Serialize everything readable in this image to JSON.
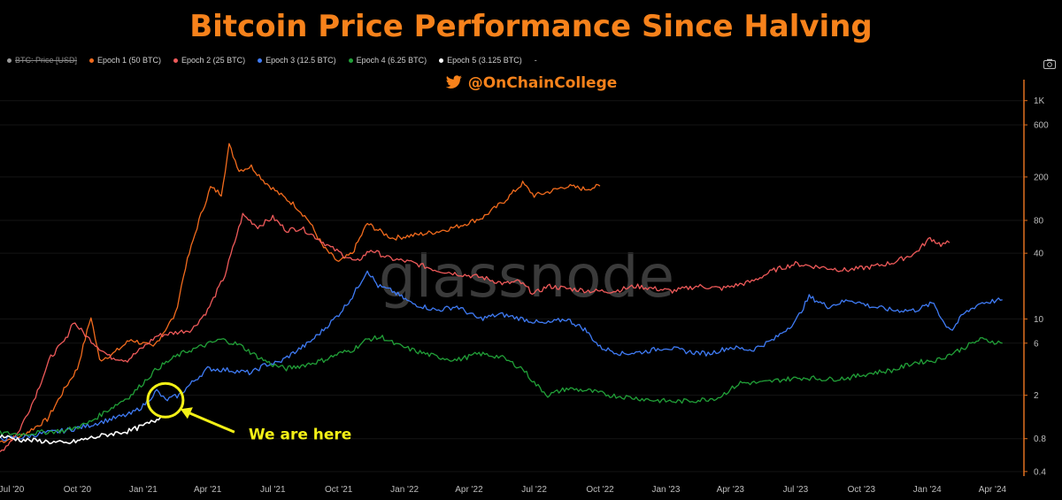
{
  "header": {
    "title": "Bitcoin Price Performance Since Halving",
    "title_color": "#f7821b",
    "handle": "@OnChainCollege",
    "handle_color": "#f7821b",
    "handle_icon": "twitter-bird-icon",
    "camera_icon": "camera-icon"
  },
  "legend": {
    "items": [
      {
        "label": "BTC: Price [USD]",
        "color": "#9a9a9a",
        "hidden": true
      },
      {
        "label": "Epoch 1 (50 BTC)",
        "color": "#f26b1d",
        "hidden": false
      },
      {
        "label": "Epoch 2 (25 BTC)",
        "color": "#ef5a5a",
        "hidden": false
      },
      {
        "label": "Epoch 3 (12.5 BTC)",
        "color": "#3f7bf5",
        "hidden": false
      },
      {
        "label": "Epoch 4 (6.25 BTC)",
        "color": "#21a038",
        "hidden": false
      },
      {
        "label": "Epoch 5 (3.125 BTC)",
        "color": "#ffffff",
        "hidden": false
      }
    ],
    "trailing": "-"
  },
  "watermark": "glassnode",
  "annotation": {
    "text": "We are here",
    "color": "#f3f016",
    "target_date": "2021-02-01",
    "target_value": 1.8
  },
  "chart_data": {
    "type": "line",
    "title": "Bitcoin Price Performance Since Halving",
    "xlabel": "",
    "ylabel": "",
    "yscale": "log",
    "ylim": [
      0.35,
      1500
    ],
    "xlim": [
      "2020-06-15",
      "2024-05-15"
    ],
    "x_ticks": [
      {
        "date": "2020-07-01",
        "label": "Jul '20"
      },
      {
        "date": "2020-10-01",
        "label": "Oct '20"
      },
      {
        "date": "2021-01-01",
        "label": "Jan '21"
      },
      {
        "date": "2021-04-01",
        "label": "Apr '21"
      },
      {
        "date": "2021-07-01",
        "label": "Jul '21"
      },
      {
        "date": "2021-10-01",
        "label": "Oct '21"
      },
      {
        "date": "2022-01-01",
        "label": "Jan '22"
      },
      {
        "date": "2022-04-01",
        "label": "Apr '22"
      },
      {
        "date": "2022-07-01",
        "label": "Jul '22"
      },
      {
        "date": "2022-10-01",
        "label": "Oct '22"
      },
      {
        "date": "2023-01-01",
        "label": "Jan '23"
      },
      {
        "date": "2023-04-01",
        "label": "Apr '23"
      },
      {
        "date": "2023-07-01",
        "label": "Jul '23"
      },
      {
        "date": "2023-10-01",
        "label": "Oct '23"
      },
      {
        "date": "2024-01-01",
        "label": "Jan '24"
      },
      {
        "date": "2024-04-01",
        "label": "Apr '24"
      }
    ],
    "y_ticks": [
      {
        "value": 0.4,
        "label": "0.4"
      },
      {
        "value": 0.8,
        "label": "0.8"
      },
      {
        "value": 2,
        "label": "2"
      },
      {
        "value": 6,
        "label": "6"
      },
      {
        "value": 10,
        "label": "10"
      },
      {
        "value": 40,
        "label": "40"
      },
      {
        "value": 80,
        "label": "80"
      },
      {
        "value": 200,
        "label": "200"
      },
      {
        "value": 600,
        "label": "600"
      },
      {
        "value": 1000,
        "label": "1K"
      }
    ],
    "series": [
      {
        "name": "Epoch 1 (50 BTC)",
        "color": "#f26b1d",
        "points": [
          [
            "2020-06-15",
            0.75
          ],
          [
            "2020-07-15",
            0.85
          ],
          [
            "2020-08-20",
            1.2
          ],
          [
            "2020-09-15",
            2.4
          ],
          [
            "2020-10-01",
            3.5
          ],
          [
            "2020-10-20",
            10.5
          ],
          [
            "2020-11-01",
            4.2
          ],
          [
            "2020-11-20",
            4.8
          ],
          [
            "2020-12-15",
            6.5
          ],
          [
            "2021-01-15",
            5.5
          ],
          [
            "2021-02-15",
            11
          ],
          [
            "2021-03-01",
            30
          ],
          [
            "2021-03-20",
            80
          ],
          [
            "2021-04-05",
            160
          ],
          [
            "2021-04-20",
            140
          ],
          [
            "2021-05-01",
            390
          ],
          [
            "2021-05-15",
            230
          ],
          [
            "2021-06-01",
            250
          ],
          [
            "2021-06-20",
            180
          ],
          [
            "2021-07-10",
            140
          ],
          [
            "2021-08-01",
            110
          ],
          [
            "2021-08-20",
            80
          ],
          [
            "2021-09-10",
            45
          ],
          [
            "2021-10-01",
            33
          ],
          [
            "2021-10-20",
            40
          ],
          [
            "2021-11-10",
            75
          ],
          [
            "2021-11-25",
            65
          ],
          [
            "2021-12-15",
            55
          ],
          [
            "2022-01-10",
            58
          ],
          [
            "2022-02-15",
            63
          ],
          [
            "2022-03-15",
            70
          ],
          [
            "2022-04-20",
            85
          ],
          [
            "2022-05-20",
            120
          ],
          [
            "2022-06-15",
            175
          ],
          [
            "2022-07-01",
            135
          ],
          [
            "2022-07-20",
            145
          ],
          [
            "2022-08-15",
            165
          ],
          [
            "2022-09-10",
            155
          ],
          [
            "2022-10-01",
            165
          ]
        ]
      },
      {
        "name": "Epoch 2 (25 BTC)",
        "color": "#ef5a5a",
        "points": [
          [
            "2020-06-15",
            0.6
          ],
          [
            "2020-07-10",
            0.9
          ],
          [
            "2020-08-01",
            1.8
          ],
          [
            "2020-08-25",
            4.5
          ],
          [
            "2020-09-15",
            6.5
          ],
          [
            "2020-09-25",
            9.5
          ],
          [
            "2020-10-15",
            6.8
          ],
          [
            "2020-11-15",
            4.5
          ],
          [
            "2020-12-10",
            4.2
          ],
          [
            "2021-01-01",
            5.5
          ],
          [
            "2021-01-20",
            7
          ],
          [
            "2021-02-15",
            7.5
          ],
          [
            "2021-03-10",
            8
          ],
          [
            "2021-04-01",
            12
          ],
          [
            "2021-04-25",
            25
          ],
          [
            "2021-05-20",
            90
          ],
          [
            "2021-06-10",
            70
          ],
          [
            "2021-07-01",
            85
          ],
          [
            "2021-07-20",
            65
          ],
          [
            "2021-08-10",
            68
          ],
          [
            "2021-09-01",
            55
          ],
          [
            "2021-09-20",
            45
          ],
          [
            "2021-10-10",
            38
          ],
          [
            "2021-10-25",
            33
          ],
          [
            "2021-11-15",
            43
          ],
          [
            "2021-12-10",
            36
          ],
          [
            "2022-01-10",
            33
          ],
          [
            "2022-02-15",
            28
          ],
          [
            "2022-03-15",
            26
          ],
          [
            "2022-04-20",
            24
          ],
          [
            "2022-05-20",
            21
          ],
          [
            "2022-06-10",
            22
          ],
          [
            "2022-07-01",
            17
          ],
          [
            "2022-07-20",
            20
          ],
          [
            "2022-08-15",
            19
          ],
          [
            "2022-09-20",
            18
          ],
          [
            "2022-10-20",
            18
          ],
          [
            "2022-11-20",
            20
          ],
          [
            "2023-01-10",
            18
          ],
          [
            "2023-02-15",
            20
          ],
          [
            "2023-03-20",
            19
          ],
          [
            "2023-05-01",
            22
          ],
          [
            "2023-06-01",
            28
          ],
          [
            "2023-07-01",
            32
          ],
          [
            "2023-08-01",
            30
          ],
          [
            "2023-09-10",
            28
          ],
          [
            "2023-10-15",
            30
          ],
          [
            "2023-11-15",
            33
          ],
          [
            "2023-12-15",
            40
          ],
          [
            "2024-01-05",
            55
          ],
          [
            "2024-01-20",
            48
          ],
          [
            "2024-02-01",
            50
          ]
        ]
      },
      {
        "name": "Epoch 3 (12.5 BTC)",
        "color": "#3f7bf5",
        "points": [
          [
            "2020-06-15",
            0.8
          ],
          [
            "2020-07-15",
            0.82
          ],
          [
            "2020-08-15",
            0.9
          ],
          [
            "2020-09-15",
            0.95
          ],
          [
            "2020-10-15",
            1.05
          ],
          [
            "2020-11-15",
            1.2
          ],
          [
            "2020-12-15",
            1.35
          ],
          [
            "2021-01-01",
            1.6
          ],
          [
            "2021-01-20",
            2.2
          ],
          [
            "2021-02-01",
            1.8
          ],
          [
            "2021-02-20",
            2.0
          ],
          [
            "2021-03-10",
            2.6
          ],
          [
            "2021-04-01",
            3.5
          ],
          [
            "2021-05-01",
            3.4
          ],
          [
            "2021-06-01",
            3.2
          ],
          [
            "2021-06-20",
            3.8
          ],
          [
            "2021-07-10",
            4.0
          ],
          [
            "2021-08-01",
            5.0
          ],
          [
            "2021-08-20",
            6.0
          ],
          [
            "2021-09-10",
            8.0
          ],
          [
            "2021-10-01",
            11
          ],
          [
            "2021-10-20",
            16
          ],
          [
            "2021-11-10",
            28
          ],
          [
            "2021-11-25",
            20
          ],
          [
            "2021-12-15",
            18
          ],
          [
            "2022-01-10",
            14
          ],
          [
            "2022-02-15",
            12
          ],
          [
            "2022-03-15",
            13
          ],
          [
            "2022-04-15",
            10
          ],
          [
            "2022-05-15",
            11
          ],
          [
            "2022-06-15",
            10
          ],
          [
            "2022-07-15",
            9
          ],
          [
            "2022-08-15",
            10
          ],
          [
            "2022-09-10",
            8
          ],
          [
            "2022-10-01",
            5.5
          ],
          [
            "2022-11-01",
            4.8
          ],
          [
            "2022-12-01",
            5.0
          ],
          [
            "2023-01-01",
            5.5
          ],
          [
            "2023-02-01",
            5.0
          ],
          [
            "2023-03-01",
            4.8
          ],
          [
            "2023-04-01",
            5.5
          ],
          [
            "2023-05-01",
            5.2
          ],
          [
            "2023-06-01",
            6.5
          ],
          [
            "2023-07-01",
            9.5
          ],
          [
            "2023-07-20",
            16
          ],
          [
            "2023-08-15",
            13
          ],
          [
            "2023-09-15",
            15
          ],
          [
            "2023-10-15",
            13
          ],
          [
            "2023-11-15",
            12
          ],
          [
            "2023-12-15",
            12
          ],
          [
            "2024-01-10",
            14
          ],
          [
            "2024-01-25",
            9
          ],
          [
            "2024-02-05",
            8
          ],
          [
            "2024-02-20",
            11
          ],
          [
            "2024-03-15",
            14
          ],
          [
            "2024-04-15",
            15
          ]
        ]
      },
      {
        "name": "Epoch 4 (6.25 BTC)",
        "color": "#21a038",
        "points": [
          [
            "2020-06-15",
            0.9
          ],
          [
            "2020-07-15",
            0.88
          ],
          [
            "2020-08-15",
            0.92
          ],
          [
            "2020-09-15",
            0.95
          ],
          [
            "2020-10-15",
            1.1
          ],
          [
            "2020-11-15",
            1.5
          ],
          [
            "2020-12-15",
            2.0
          ],
          [
            "2021-01-01",
            2.6
          ],
          [
            "2021-01-20",
            3.5
          ],
          [
            "2021-02-15",
            4.5
          ],
          [
            "2021-03-01",
            5.0
          ],
          [
            "2021-03-20",
            5.5
          ],
          [
            "2021-04-05",
            6.0
          ],
          [
            "2021-04-20",
            6.5
          ],
          [
            "2021-05-15",
            5.8
          ],
          [
            "2021-06-10",
            4.5
          ],
          [
            "2021-07-01",
            3.8
          ],
          [
            "2021-07-20",
            3.5
          ],
          [
            "2021-08-15",
            3.8
          ],
          [
            "2021-09-10",
            4.2
          ],
          [
            "2021-10-01",
            4.8
          ],
          [
            "2021-10-20",
            5.2
          ],
          [
            "2021-11-10",
            6.5
          ],
          [
            "2021-12-01",
            6.8
          ],
          [
            "2021-12-20",
            5.8
          ],
          [
            "2022-01-20",
            5.0
          ],
          [
            "2022-02-15",
            4.5
          ],
          [
            "2022-03-15",
            4.2
          ],
          [
            "2022-04-15",
            4.8
          ],
          [
            "2022-05-15",
            4.5
          ],
          [
            "2022-06-15",
            3.5
          ],
          [
            "2022-07-01",
            2.6
          ],
          [
            "2022-07-20",
            2.0
          ],
          [
            "2022-08-15",
            2.3
          ],
          [
            "2022-09-15",
            2.2
          ],
          [
            "2022-10-15",
            2.0
          ],
          [
            "2022-11-15",
            1.9
          ],
          [
            "2022-12-15",
            1.8
          ],
          [
            "2023-01-15",
            1.75
          ],
          [
            "2023-02-15",
            1.8
          ],
          [
            "2023-03-15",
            1.9
          ],
          [
            "2023-04-15",
            2.6
          ],
          [
            "2023-05-15",
            2.6
          ],
          [
            "2023-06-15",
            2.8
          ],
          [
            "2023-07-15",
            2.9
          ],
          [
            "2023-08-15",
            2.8
          ],
          [
            "2023-09-15",
            2.9
          ],
          [
            "2023-10-15",
            3.2
          ],
          [
            "2023-11-15",
            3.4
          ],
          [
            "2023-12-15",
            4.0
          ],
          [
            "2024-01-15",
            4.2
          ],
          [
            "2024-02-15",
            5.2
          ],
          [
            "2024-03-15",
            6.5
          ],
          [
            "2024-04-15",
            6.0
          ]
        ]
      },
      {
        "name": "Epoch 5 (3.125 BTC)",
        "color": "#ffffff",
        "points": [
          [
            "2020-06-15",
            0.85
          ],
          [
            "2020-07-15",
            0.78
          ],
          [
            "2020-08-15",
            0.76
          ],
          [
            "2020-09-15",
            0.72
          ],
          [
            "2020-10-15",
            0.8
          ],
          [
            "2020-11-15",
            0.88
          ],
          [
            "2020-12-15",
            0.95
          ],
          [
            "2021-01-01",
            1.05
          ],
          [
            "2021-01-15",
            1.15
          ],
          [
            "2021-01-25",
            1.25
          ]
        ]
      }
    ]
  }
}
